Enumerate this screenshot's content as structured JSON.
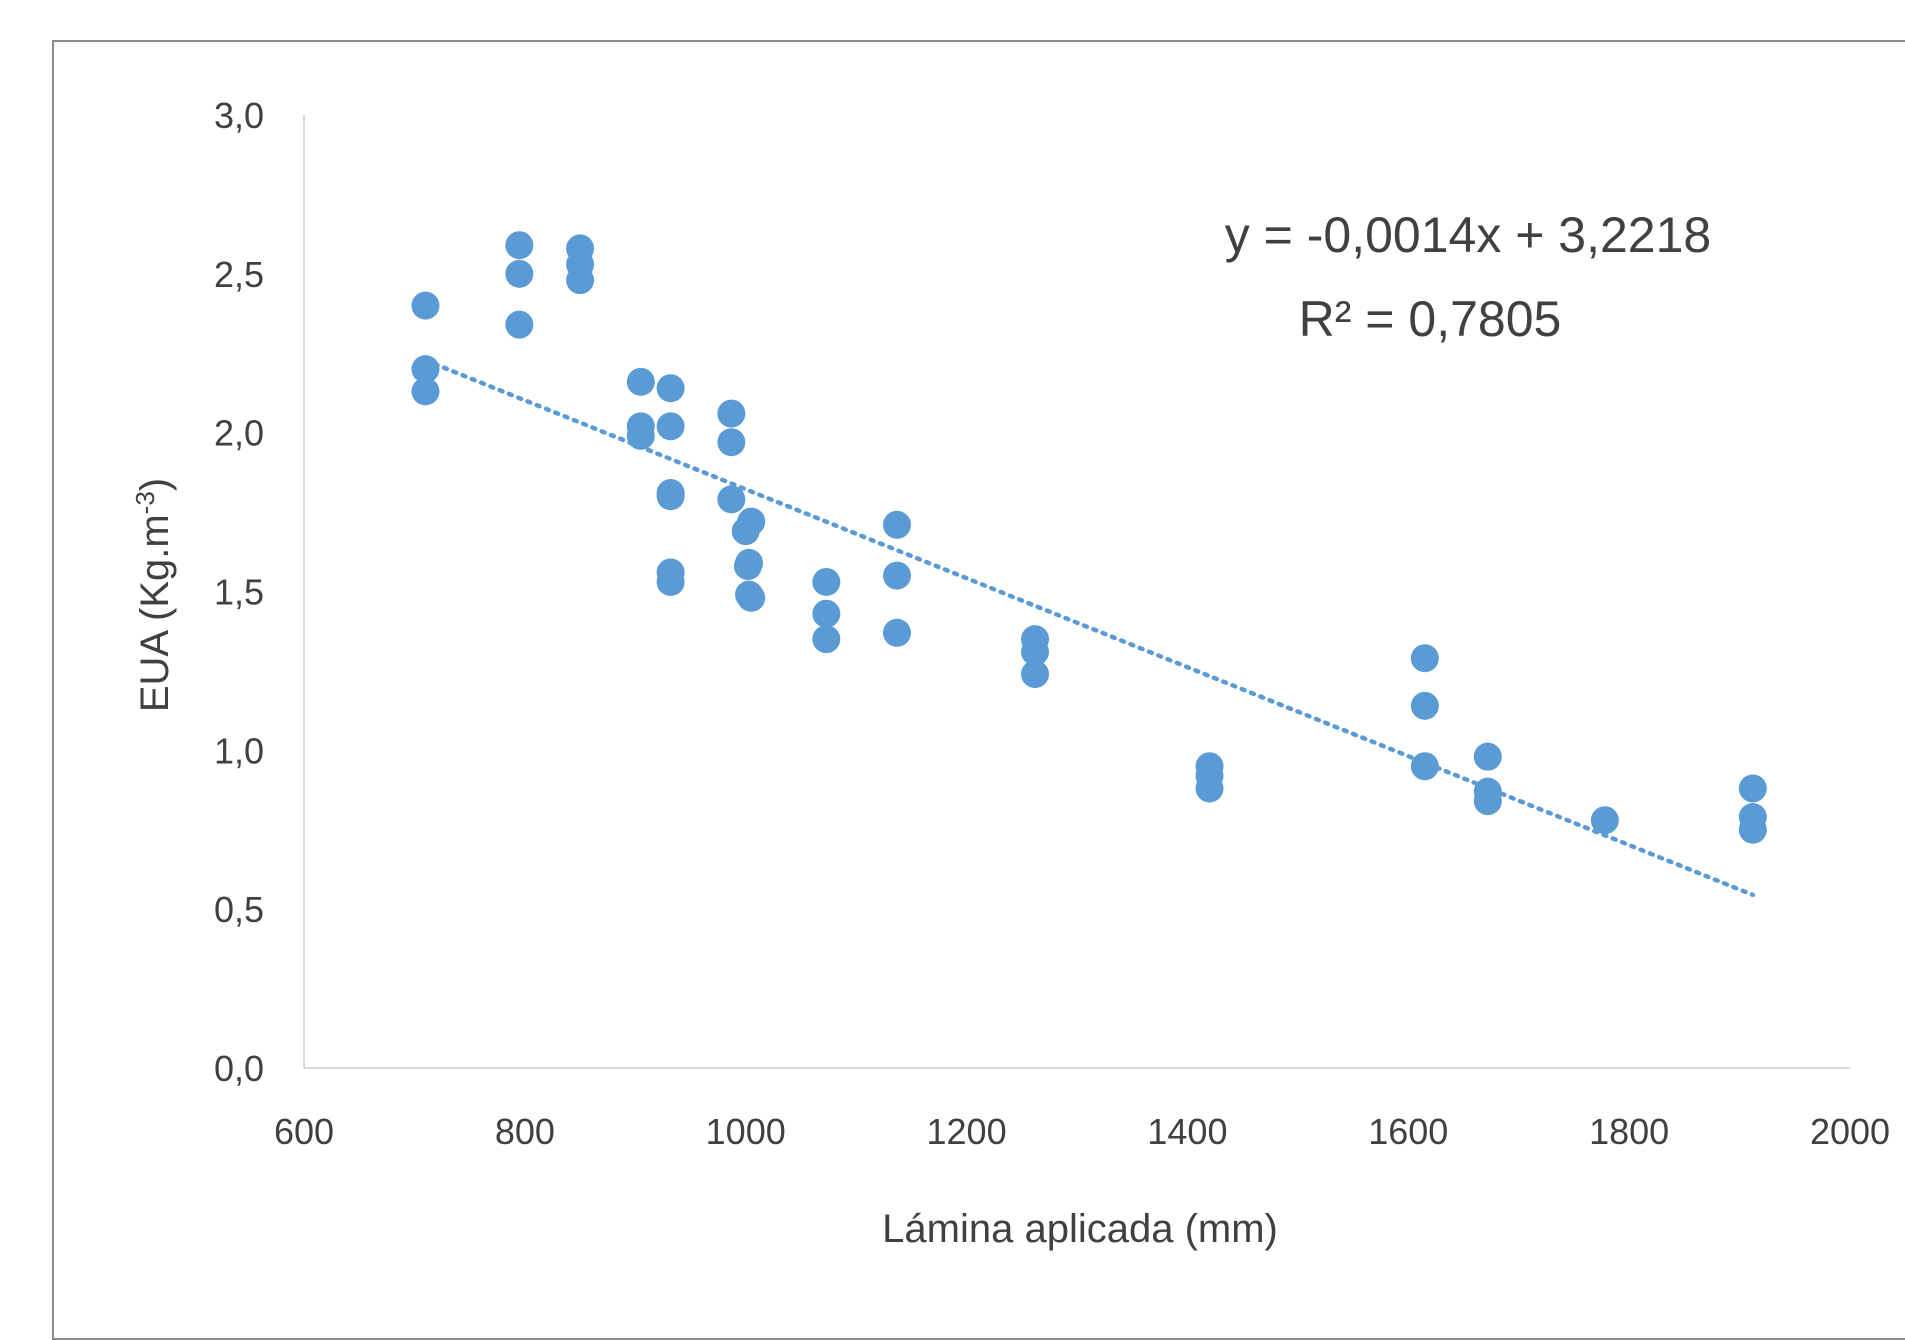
{
  "chart_data": {
    "type": "scatter",
    "title": "",
    "xlabel": "Lámina aplicada (mm)",
    "ylabel_main": "EUA (Kg.m",
    "ylabel_sup": "-3",
    "ylabel_end": ")",
    "xlim": [
      600,
      2000
    ],
    "ylim": [
      0,
      3
    ],
    "x_ticks": [
      "600",
      "800",
      "1000",
      "1200",
      "1400",
      "1600",
      "1800",
      "2000"
    ],
    "y_ticks": [
      "0,0",
      "0,5",
      "1,0",
      "1,5",
      "2,0",
      "2,5",
      "3,0"
    ],
    "grid": false,
    "marker_color": "#5b9bd5",
    "trend_color": "#5b9bd5",
    "series": [
      {
        "points": [
          [
            710,
            2.4
          ],
          [
            710,
            2.2
          ],
          [
            710,
            2.13
          ],
          [
            795,
            2.59
          ],
          [
            795,
            2.5
          ],
          [
            795,
            2.34
          ],
          [
            850,
            2.58
          ],
          [
            850,
            2.53
          ],
          [
            850,
            2.48
          ],
          [
            905,
            2.16
          ],
          [
            905,
            2.02
          ],
          [
            905,
            1.99
          ],
          [
            932,
            2.14
          ],
          [
            932,
            2.02
          ],
          [
            932,
            1.81
          ],
          [
            932,
            1.8
          ],
          [
            932,
            1.56
          ],
          [
            932,
            1.53
          ],
          [
            987,
            2.06
          ],
          [
            987,
            1.97
          ],
          [
            987,
            1.79
          ],
          [
            1005,
            1.72
          ],
          [
            1000,
            1.69
          ],
          [
            1003,
            1.59
          ],
          [
            1002,
            1.58
          ],
          [
            1003,
            1.49
          ],
          [
            1005,
            1.48
          ],
          [
            1073,
            1.53
          ],
          [
            1073,
            1.43
          ],
          [
            1073,
            1.35
          ],
          [
            1137,
            1.71
          ],
          [
            1137,
            1.55
          ],
          [
            1137,
            1.37
          ],
          [
            1262,
            1.35
          ],
          [
            1262,
            1.31
          ],
          [
            1262,
            1.24
          ],
          [
            1420,
            0.95
          ],
          [
            1420,
            0.92
          ],
          [
            1420,
            0.88
          ],
          [
            1615,
            1.29
          ],
          [
            1615,
            1.14
          ],
          [
            1615,
            0.95
          ],
          [
            1672,
            0.98
          ],
          [
            1672,
            0.87
          ],
          [
            1672,
            0.84
          ],
          [
            1778,
            0.78
          ],
          [
            1912,
            0.88
          ],
          [
            1912,
            0.79
          ],
          [
            1912,
            0.75
          ]
        ]
      }
    ],
    "trendline": {
      "slope": -0.0014,
      "intercept": 3.2218,
      "x_range": [
        710,
        1912
      ],
      "equation": "y = -0,0014x + 3,2218",
      "r_squared": "R² = 0,7805"
    }
  }
}
